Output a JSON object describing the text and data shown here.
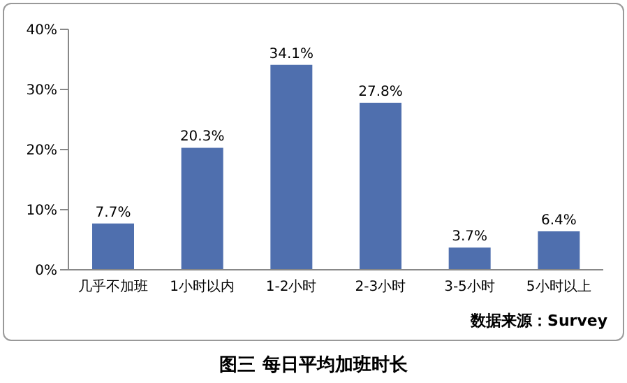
{
  "chart_data": {
    "type": "bar",
    "title": "图三 每日平均加班时长",
    "categories": [
      "几乎不加班",
      "1小时以内",
      "1-2小时",
      "2-3小时",
      "3-5小时",
      "5小时以上"
    ],
    "values": [
      7.7,
      20.3,
      34.1,
      27.8,
      3.7,
      6.4
    ],
    "value_labels": [
      "7.7%",
      "20.3%",
      "34.1%",
      "27.8%",
      "3.7%",
      "6.4%"
    ],
    "color": "#4f6fae",
    "ylim": [
      0,
      40
    ],
    "yticks": [
      {
        "value": 0,
        "label": "0%"
      },
      {
        "value": 10,
        "label": "10%"
      },
      {
        "value": 20,
        "label": "20%"
      },
      {
        "value": 30,
        "label": "30%"
      },
      {
        "value": 40,
        "label": "40%"
      }
    ],
    "grid": false,
    "annotations": [
      "数据来源：Survey"
    ]
  }
}
